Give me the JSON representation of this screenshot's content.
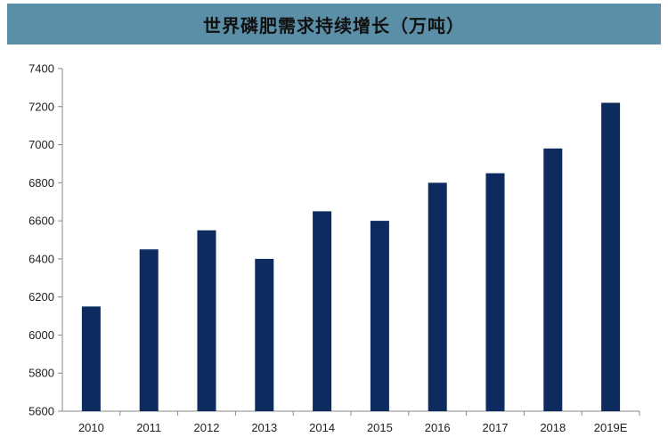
{
  "chart_data": {
    "type": "bar",
    "title": "世界磷肥需求持续增长（万吨）",
    "categories": [
      "2010",
      "2011",
      "2012",
      "2013",
      "2014",
      "2015",
      "2016",
      "2017",
      "2018",
      "2019E"
    ],
    "series": [
      {
        "values": [
          6150,
          6450,
          6550,
          6400,
          6650,
          6600,
          6800,
          6850,
          6980,
          7220
        ]
      }
    ],
    "ylim": [
      5600,
      7400
    ],
    "yticks": [
      5600,
      5800,
      6000,
      6200,
      6400,
      6600,
      6800,
      7000,
      7200,
      7400
    ],
    "grid": false,
    "colors": {
      "bar": "#0d2b5e",
      "title_background": "#5b8fa8"
    }
  }
}
